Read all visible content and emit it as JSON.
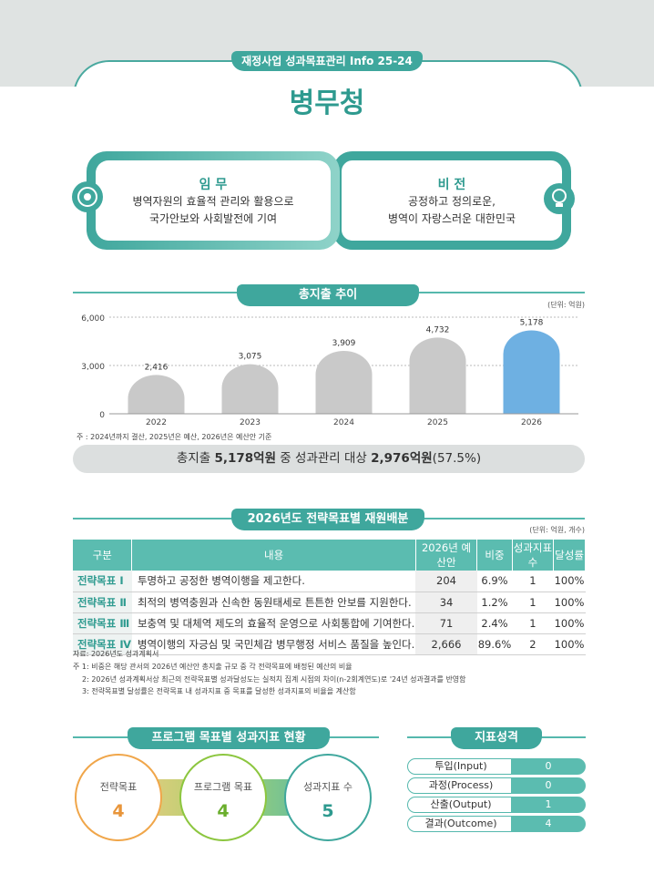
{
  "header": {
    "badge": "재정사업 성과목표관리 Info 25-24",
    "title": "병무청"
  },
  "mission": {
    "title": "임 무",
    "lines": [
      "병역자원의 효율적 관리와 활용으로",
      "국가안보와 사회발전에 기여"
    ]
  },
  "vision": {
    "title": "비 전",
    "lines": [
      "공정하고 정의로운,",
      "병역이 자랑스러운 대한민국"
    ]
  },
  "chart_data": {
    "type": "bar",
    "title": "총지출 추이",
    "unit": "(단위: 억원)",
    "categories": [
      "2022",
      "2023",
      "2024",
      "2025",
      "2026"
    ],
    "values": [
      2416,
      3075,
      3909,
      4732,
      5178
    ],
    "value_labels": [
      "2,416",
      "3,075",
      "3,909",
      "4,732",
      "5,178"
    ],
    "colors": [
      "#c9c9c9",
      "#c9c9c9",
      "#c9c9c9",
      "#c9c9c9",
      "#6eb0e2"
    ],
    "ylim": [
      0,
      6000
    ],
    "yticks": [
      0,
      {
        "value": 3000,
        "label": "3,000"
      },
      {
        "value": 6000,
        "label": "6,000"
      }
    ],
    "grid": true,
    "note": "주 : 2024년까지 결산, 2025년은 예산, 2026년은 예산안 기준"
  },
  "summary": {
    "parts": [
      "총지출 ",
      "5,178억원",
      " 중 성과관리 대상 ",
      "2,976억원",
      "(57.5%)"
    ]
  },
  "table": {
    "title": "2026년도 전략목표별 재원배분",
    "unit": "(단위: 억원, 개수)",
    "header": [
      "구분",
      "내용",
      "2026년 예산안",
      "비중",
      "성과지표수",
      "달성률"
    ],
    "rows": [
      [
        "전략목표 Ⅰ",
        "투명하고 공정한 병역이행을 제고한다.",
        "204",
        "6.9%",
        "1",
        "100%"
      ],
      [
        "전략목표 Ⅱ",
        "최적의 병역충원과 신속한 동원태세로 튼튼한 안보를 지원한다.",
        "34",
        "1.2%",
        "1",
        "100%"
      ],
      [
        "전략목표 Ⅲ",
        "보충역 및 대체역 제도의 효율적 운영으로 사회통합에 기여한다.",
        "71",
        "2.4%",
        "1",
        "100%"
      ],
      [
        "전략목표 Ⅳ",
        "병역이행의 자긍심 및 국민체감 병무행정 서비스 품질을 높인다.",
        "2,666",
        "89.6%",
        "2",
        "100%"
      ]
    ],
    "source": "자료:  2026년도 성과계획서",
    "notes": [
      "주 1: 비중은 해당 관서의 2026년 예산안 총지출 규모 중 각 전략목표에 배정된 예산의 비율",
      "2: 2026년 성과계획서상 최근의 전략목표별 성과달성도는 실적치 집계 시점의 차이(n-2회계연도)로 '24년 성과결과를 반영함",
      "3: 전략목표별 달성률은 전략목표 내 성과지표 중 목표를 달성한 성과지표의 비율을 계산함"
    ]
  },
  "program": {
    "title": "프로그램 목표별 성과지표 현황",
    "items": [
      {
        "label": "전략목표",
        "value": "4"
      },
      {
        "label": "프로그램 목표",
        "value": "4"
      },
      {
        "label": "성과지표 수",
        "value": "5"
      }
    ]
  },
  "indicator": {
    "title": "지표성격",
    "rows": [
      {
        "label": "투입(Input)",
        "value": "0"
      },
      {
        "label": "과정(Process)",
        "value": "0"
      },
      {
        "label": "산출(Output)",
        "value": "1"
      },
      {
        "label": "결과(Outcome)",
        "value": "4"
      }
    ]
  }
}
